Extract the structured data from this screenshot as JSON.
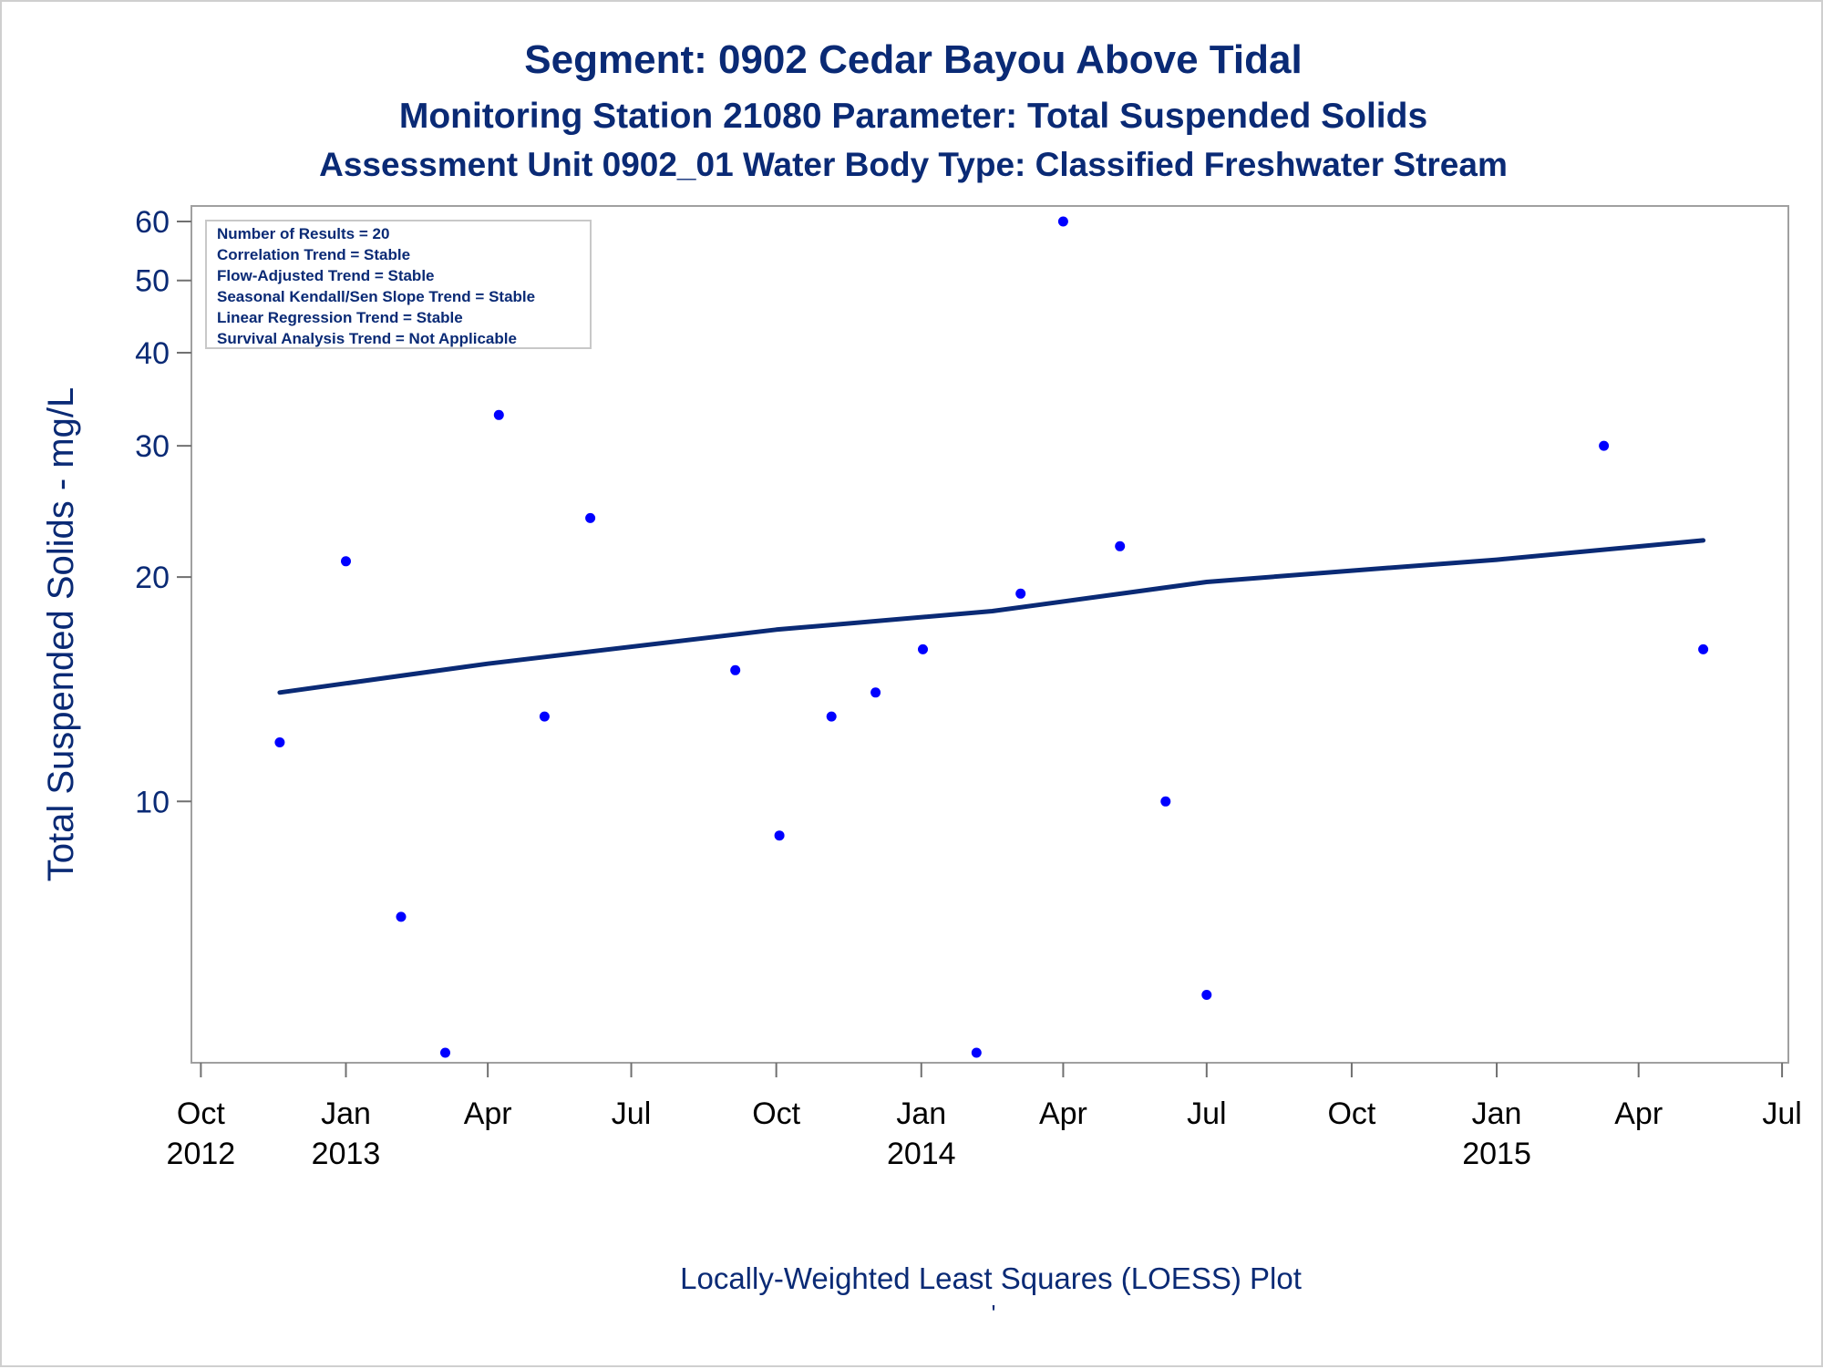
{
  "titles": {
    "line1": "Segment: 0902  Cedar Bayou Above Tidal",
    "line2": "Monitoring Station 21080 Parameter: Total Suspended Solids",
    "line3": "Assessment Unit 0902_01   Water Body Type: Classified Freshwater Stream"
  },
  "stats_box": {
    "lines": [
      "Number of Results = 20",
      "Correlation Trend = Stable",
      "Flow-Adjusted Trend = Stable",
      "Seasonal Kendall/Sen Slope Trend = Stable",
      "Linear Regression Trend = Stable",
      "Survival Analysis Trend = Not Applicable"
    ]
  },
  "footnote": {
    "text": "Locally-Weighted Least Squares (LOESS) Plot",
    "mark": "'"
  },
  "colors": {
    "title": "#0a2a75",
    "points": "#0000ff",
    "trend_line": "#0a2a75",
    "frame": "#a0a0a0"
  },
  "chart_data": {
    "type": "scatter",
    "ylabel": "Total Suspended Solids - mg/L",
    "y_scale": "log",
    "ylim": [
      4.6,
      60
    ],
    "y_ticks": [
      10,
      20,
      30,
      40,
      50,
      60
    ],
    "xlim": [
      "2012-09-25",
      "2015-07-05"
    ],
    "x_ticks": [
      {
        "date": "2012-10-01",
        "label": "Oct",
        "year": "2012"
      },
      {
        "date": "2013-01-01",
        "label": "Jan",
        "year": "2013"
      },
      {
        "date": "2013-04-01",
        "label": "Apr",
        "year": ""
      },
      {
        "date": "2013-07-01",
        "label": "Jul",
        "year": ""
      },
      {
        "date": "2013-10-01",
        "label": "Oct",
        "year": ""
      },
      {
        "date": "2014-01-01",
        "label": "Jan",
        "year": "2014"
      },
      {
        "date": "2014-04-01",
        "label": "Apr",
        "year": ""
      },
      {
        "date": "2014-07-01",
        "label": "Jul",
        "year": ""
      },
      {
        "date": "2014-10-01",
        "label": "Oct",
        "year": ""
      },
      {
        "date": "2015-01-01",
        "label": "Jan",
        "year": "2015"
      },
      {
        "date": "2015-04-01",
        "label": "Apr",
        "year": ""
      },
      {
        "date": "2015-07-01",
        "label": "Jul",
        "year": ""
      }
    ],
    "points": [
      {
        "x": "2012-11-20",
        "y": 12
      },
      {
        "x": "2013-01-01",
        "y": 21
      },
      {
        "x": "2013-02-05",
        "y": 7
      },
      {
        "x": "2013-03-05",
        "y": 4.6
      },
      {
        "x": "2013-04-08",
        "y": 33
      },
      {
        "x": "2013-05-07",
        "y": 13
      },
      {
        "x": "2013-06-05",
        "y": 24
      },
      {
        "x": "2013-09-05",
        "y": 15
      },
      {
        "x": "2013-10-03",
        "y": 9
      },
      {
        "x": "2013-11-05",
        "y": 13
      },
      {
        "x": "2013-12-03",
        "y": 14
      },
      {
        "x": "2014-01-02",
        "y": 16
      },
      {
        "x": "2014-02-05",
        "y": 4.6
      },
      {
        "x": "2014-03-05",
        "y": 19
      },
      {
        "x": "2014-04-01",
        "y": 60
      },
      {
        "x": "2014-05-07",
        "y": 22
      },
      {
        "x": "2014-06-05",
        "y": 10
      },
      {
        "x": "2014-07-01",
        "y": 5.5
      },
      {
        "x": "2015-03-10",
        "y": 30
      },
      {
        "x": "2015-05-12",
        "y": 16
      }
    ],
    "trend_line": [
      {
        "x": "2012-11-20",
        "y": 14.0
      },
      {
        "x": "2013-04-01",
        "y": 15.3
      },
      {
        "x": "2013-10-01",
        "y": 17.0
      },
      {
        "x": "2014-02-15",
        "y": 18.0
      },
      {
        "x": "2014-07-01",
        "y": 19.7
      },
      {
        "x": "2014-10-01",
        "y": 20.4
      },
      {
        "x": "2015-01-01",
        "y": 21.1
      },
      {
        "x": "2015-05-12",
        "y": 22.4
      }
    ]
  }
}
